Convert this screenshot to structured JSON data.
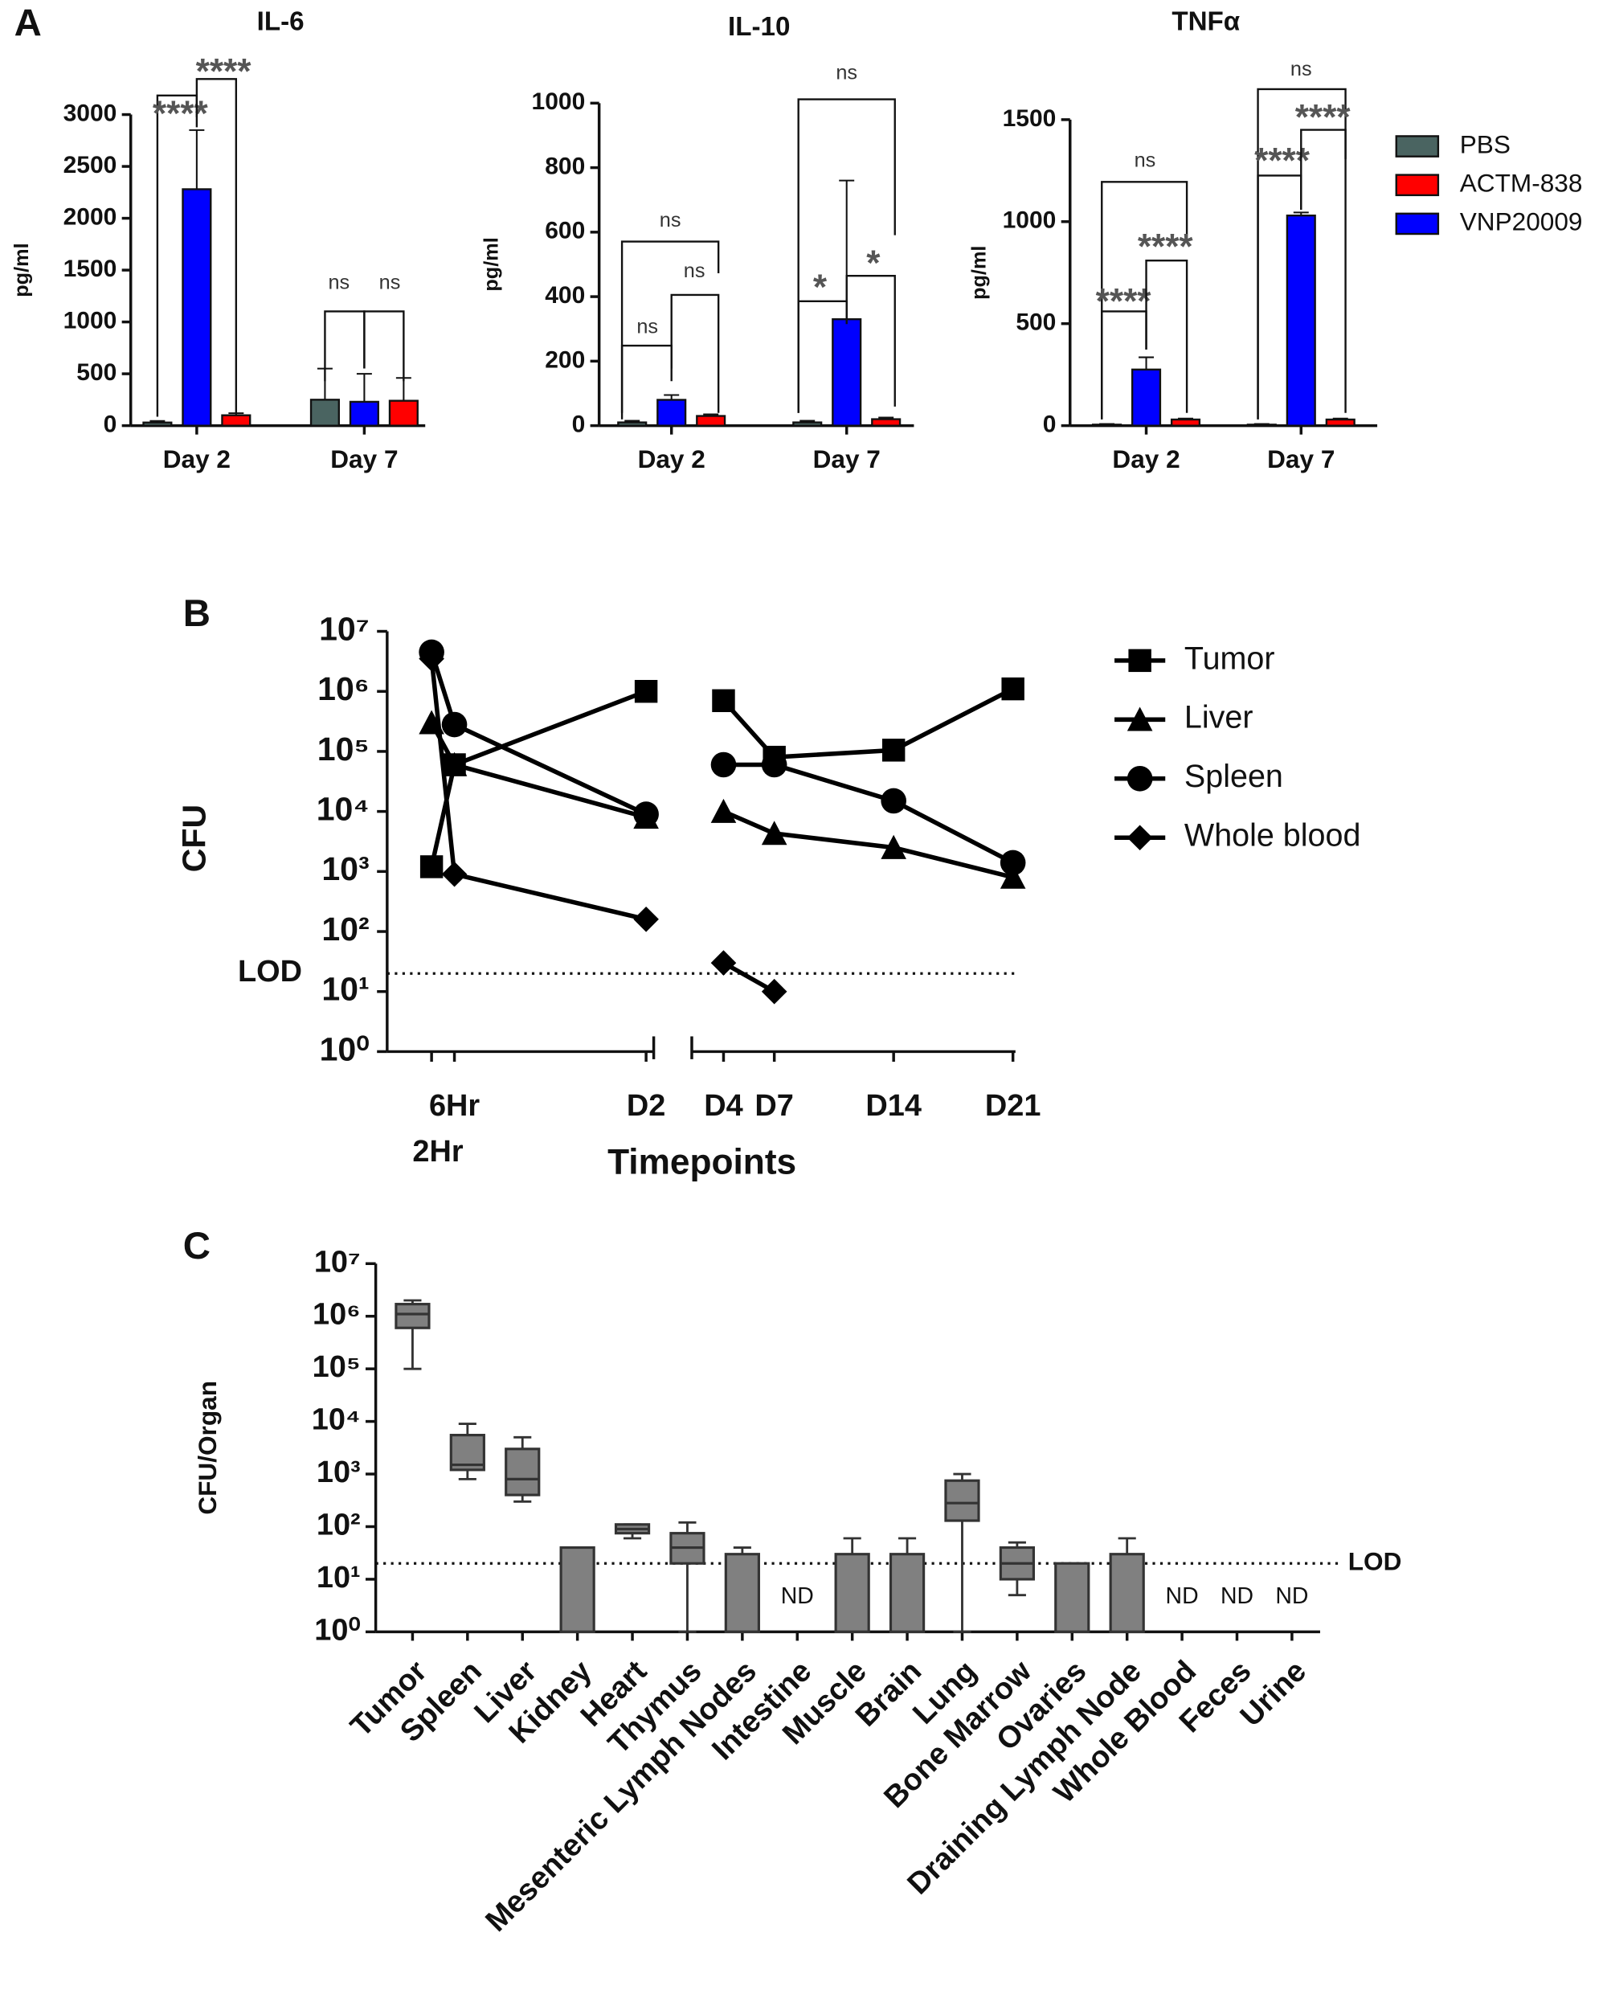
{
  "chart_data": [
    {
      "type": "bar",
      "panel": "A",
      "title": "IL-6",
      "y_label": "pg/ml",
      "categories": [
        "Day 2",
        "Day 7"
      ],
      "series": [
        {
          "color": "#4a6461",
          "values": [
            30,
            250
          ],
          "errors": [
            15,
            300
          ]
        },
        {
          "color": "#ff0000",
          "values": [
            100,
            240
          ],
          "errors": [
            20,
            220
          ]
        },
        {
          "color": "#0000ff",
          "values": [
            2280,
            230
          ],
          "errors": [
            570,
            270
          ]
        }
      ],
      "ylim": [
        0,
        3000
      ],
      "yticks": [
        0,
        500,
        1000,
        1500,
        2000,
        2500,
        3000
      ],
      "annotations": [
        "****",
        "****",
        "ns",
        "ns"
      ]
    },
    {
      "type": "bar",
      "title": "IL-10",
      "y_label": "pg/ml",
      "categories": [
        "Day 2",
        "Day 7"
      ],
      "series": [
        {
          "color": "#4a6461",
          "values": [
            10,
            10
          ],
          "errors": [
            5,
            5
          ]
        },
        {
          "color": "#ff0000",
          "values": [
            30,
            20
          ],
          "errors": [
            5,
            5
          ]
        },
        {
          "color": "#0000ff",
          "values": [
            80,
            330
          ],
          "errors": [
            15,
            430
          ]
        }
      ],
      "ylim": [
        0,
        1000
      ],
      "yticks": [
        0,
        200,
        400,
        600,
        800,
        1000
      ],
      "annotations": [
        "ns",
        "ns",
        "ns",
        "ns",
        "*",
        "*"
      ]
    },
    {
      "type": "bar",
      "title": "TNFα",
      "y_label": "pg/ml",
      "categories": [
        "Day 2",
        "Day 7"
      ],
      "series": [
        {
          "name": "PBS",
          "color": "#4a6461",
          "values": [
            5,
            5
          ],
          "errors": [
            3,
            3
          ]
        },
        {
          "name": "ACTM-838",
          "color": "#ff0000",
          "values": [
            30,
            30
          ],
          "errors": [
            5,
            5
          ]
        },
        {
          "name": "VNP20009",
          "color": "#0000ff",
          "values": [
            275,
            1030
          ],
          "errors": [
            60,
            15
          ]
        }
      ],
      "ylim": [
        0,
        1500
      ],
      "yticks": [
        0,
        500,
        1000,
        1500
      ],
      "annotations": [
        "ns",
        "****",
        "****",
        "ns",
        "****",
        "****"
      ]
    },
    {
      "type": "line",
      "panel": "B",
      "x_label": "Timepoints",
      "y_label": "CFU",
      "log_scale": true,
      "categories": [
        "2Hr",
        "6Hr",
        "D2",
        "D4",
        "D7",
        "D14",
        "D21"
      ],
      "series": [
        {
          "name": "Tumor",
          "marker": "square",
          "color": "#000000",
          "values": [
            1200,
            60000,
            1000000,
            700000,
            80000,
            105000,
            1100000
          ]
        },
        {
          "name": "Liver",
          "marker": "triangle",
          "color": "#000000",
          "values": [
            300000,
            60000,
            8000,
            10000,
            4300,
            2500,
            800
          ]
        },
        {
          "name": "Spleen",
          "marker": "circle",
          "color": "#000000",
          "values": [
            4500000,
            280000,
            9000,
            60000,
            60000,
            15000,
            1400
          ]
        },
        {
          "name": "Whole blood",
          "marker": "diamond",
          "color": "#000000",
          "values": [
            3500000,
            900,
            160,
            30,
            10,
            null,
            null
          ]
        }
      ],
      "ylim": [
        1,
        10000000
      ],
      "yticks": [
        {
          "value": 1,
          "label": "10⁰"
        },
        {
          "value": 10,
          "label": "10¹"
        },
        {
          "value": 100,
          "label": "10²"
        },
        {
          "value": 1000,
          "label": "10³"
        },
        {
          "value": 10000,
          "label": "10⁴"
        },
        {
          "value": 100000,
          "label": "10⁵"
        },
        {
          "value": 1000000,
          "label": "10⁶"
        },
        {
          "value": 10000000,
          "label": "10⁷"
        }
      ],
      "reference_line": {
        "value": 20,
        "label": "LOD"
      }
    },
    {
      "type": "box",
      "panel": "C",
      "y_label": "CFU/Organ",
      "log_scale": true,
      "categories": [
        "Tumor",
        "Spleen",
        "Liver",
        "Kidney",
        "Heart",
        "Thymus",
        "Mesenteric Lymph Nodes",
        "Intestine",
        "Muscle",
        "Brain",
        "Lung",
        "Bone Marrow",
        "Ovaries",
        "Draining Lymph Node",
        "Whole Blood",
        "Feces",
        "Urine"
      ],
      "series": [
        {
          "color": "#808080",
          "min": [
            100000,
            800,
            300,
            1,
            60,
            1,
            1,
            null,
            1,
            1,
            1,
            5,
            1,
            1,
            null,
            null,
            null
          ],
          "q1": [
            600000,
            1200,
            400,
            1,
            75,
            20,
            1,
            null,
            1,
            1,
            130,
            10,
            1,
            1,
            null,
            null,
            null
          ],
          "median": [
            1100000,
            1500,
            800,
            1,
            90,
            40,
            1,
            null,
            1,
            1,
            280,
            20,
            1,
            1,
            null,
            null,
            null
          ],
          "q3": [
            1700000,
            5500,
            3000,
            40,
            110,
            75,
            30,
            null,
            30,
            30,
            750,
            40,
            20,
            30,
            null,
            null,
            null
          ],
          "max": [
            2000000,
            9000,
            5000,
            40,
            110,
            120,
            40,
            null,
            60,
            60,
            1000,
            50,
            20,
            60,
            null,
            null,
            null
          ]
        }
      ],
      "nd_label": "ND",
      "ylim": [
        1,
        10000000
      ],
      "yticks": [
        {
          "value": 1,
          "label": "10⁰"
        },
        {
          "value": 10,
          "label": "10¹"
        },
        {
          "value": 100,
          "label": "10²"
        },
        {
          "value": 1000,
          "label": "10³"
        },
        {
          "value": 10000,
          "label": "10⁴"
        },
        {
          "value": 100000,
          "label": "10⁵"
        },
        {
          "value": 1000000,
          "label": "10⁶"
        },
        {
          "value": 10000000,
          "label": "10⁷"
        }
      ],
      "reference_line": {
        "value": 20,
        "label": "LOD"
      }
    }
  ]
}
